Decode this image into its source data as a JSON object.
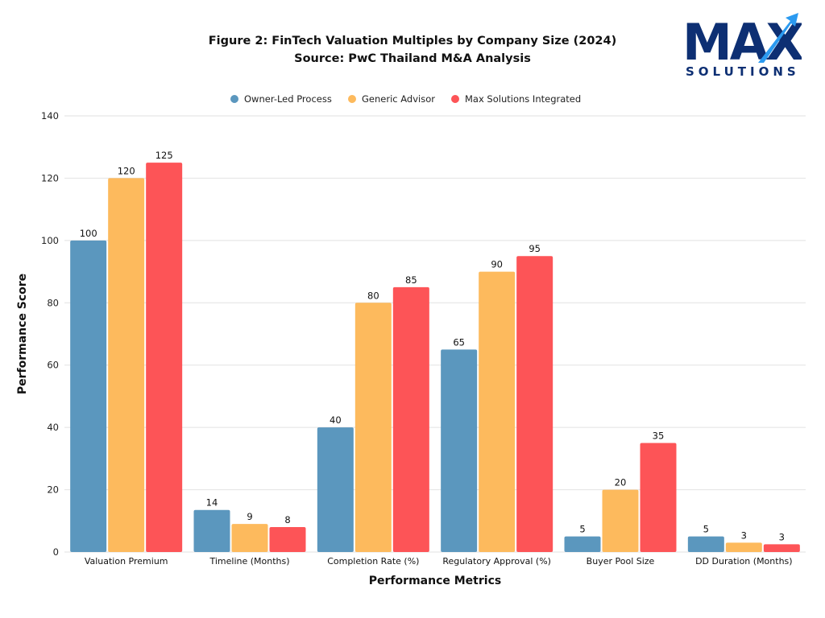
{
  "logo": {
    "wordmark": "MAX",
    "tagline": "SOLUTIONS"
  },
  "chart_data": {
    "type": "bar",
    "title": "Figure 2: FinTech Valuation Multiples by Company Size (2024)",
    "subtitle": "Source: PwC Thailand M&A Analysis",
    "xlabel": "Performance Metrics",
    "ylabel": "Performance Score",
    "ylim": [
      0,
      140
    ],
    "yticks": [
      0,
      20,
      40,
      60,
      80,
      100,
      120,
      140
    ],
    "grid": true,
    "legend_position": "top-center",
    "categories": [
      "Valuation Premium",
      "Timeline (Months)",
      "Completion Rate (%)",
      "Regulatory Approval (%)",
      "Buyer Pool Size",
      "DD Duration (Months)"
    ],
    "series": [
      {
        "name": "Owner-Led Process",
        "color": "#5B97BE",
        "values": [
          100,
          13.5,
          40,
          65,
          5,
          5
        ],
        "labels": [
          "100",
          "14",
          "40",
          "65",
          "5",
          "5"
        ]
      },
      {
        "name": "Generic Advisor",
        "color": "#FDBA5D",
        "values": [
          120,
          9,
          80,
          90,
          20,
          3
        ],
        "labels": [
          "120",
          "9",
          "80",
          "90",
          "20",
          "3"
        ]
      },
      {
        "name": "Max Solutions Integrated",
        "color": "#FD5457",
        "values": [
          125,
          8,
          85,
          95,
          35,
          2.5
        ],
        "labels": [
          "125",
          "8",
          "85",
          "95",
          "35",
          "3"
        ]
      }
    ]
  }
}
